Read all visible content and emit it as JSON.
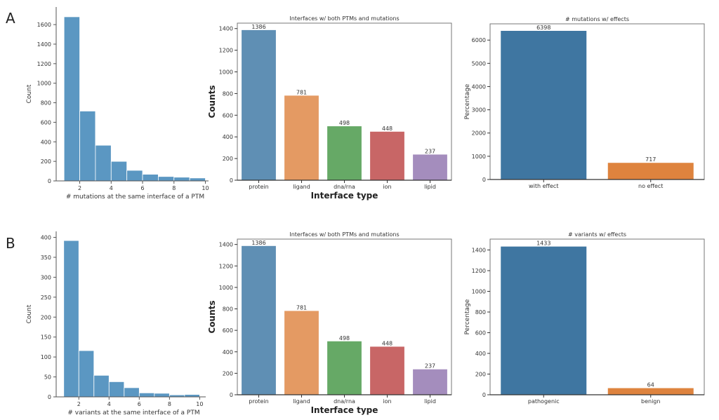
{
  "panel_labels": [
    "A",
    "B"
  ],
  "chart_data": [
    {
      "id": "A-hist",
      "type": "bar",
      "subtype": "histogram",
      "title": "",
      "xlabel": "# mutations at the same interface of a PTM",
      "ylabel": "Count",
      "bin_edges": [
        1,
        2,
        3,
        4,
        5,
        6,
        7,
        8,
        9,
        10
      ],
      "values": [
        1680,
        715,
        365,
        200,
        108,
        68,
        45,
        38,
        30
      ],
      "xlim": [
        0.5,
        10.2
      ],
      "ylim": [
        0,
        1780
      ],
      "xticks": [
        2,
        4,
        6,
        8,
        10
      ],
      "yticks": [
        0,
        200,
        400,
        600,
        800,
        1000,
        1200,
        1400,
        1600
      ],
      "color": "#5b97c2",
      "grid": false
    },
    {
      "id": "A-interfaces",
      "type": "bar",
      "title": "Interfaces w/ both PTMs and mutations",
      "xlabel": "Interface type",
      "ylabel": "Counts",
      "categories": [
        "protein",
        "ligand",
        "dna/rna",
        "ion",
        "lipid"
      ],
      "values": [
        1386,
        781,
        498,
        448,
        237
      ],
      "data_labels": [
        "1386",
        "781",
        "498",
        "448",
        "237"
      ],
      "colors": [
        "#5f8fb4",
        "#e49a63",
        "#66a966",
        "#c86666",
        "#a48dbd"
      ],
      "ylim": [
        0,
        1450
      ],
      "yticks": [
        0,
        200,
        400,
        600,
        800,
        1000,
        1200,
        1400
      ],
      "grid": false
    },
    {
      "id": "A-effects",
      "type": "bar",
      "title": "# mutations w/ effects",
      "xlabel": "",
      "ylabel": "Percentage",
      "categories": [
        "with effect",
        "no effect"
      ],
      "values": [
        6398,
        717
      ],
      "data_labels": [
        "6398",
        "717"
      ],
      "colors": [
        "#3f76a1",
        "#de833e"
      ],
      "ylim": [
        0,
        6700
      ],
      "yticks": [
        0,
        1000,
        2000,
        3000,
        4000,
        5000,
        6000
      ],
      "grid": false
    },
    {
      "id": "B-hist",
      "type": "bar",
      "subtype": "histogram",
      "title": "",
      "xlabel": "# variants at the same interface of a PTM",
      "ylabel": "Count",
      "bin_edges": [
        1,
        2,
        3,
        4,
        5,
        6,
        7,
        8,
        9,
        10
      ],
      "values": [
        392,
        116,
        54,
        38,
        23,
        10,
        9,
        5,
        6
      ],
      "xlim": [
        0.5,
        10.4
      ],
      "ylim": [
        0,
        415
      ],
      "xticks": [
        2,
        4,
        6,
        8,
        10
      ],
      "yticks": [
        0,
        50,
        100,
        150,
        200,
        250,
        300,
        350,
        400
      ],
      "color": "#5b97c2",
      "grid": false
    },
    {
      "id": "B-interfaces",
      "type": "bar",
      "title": "Interfaces w/ both PTMs and mutations",
      "xlabel": "Interface type",
      "ylabel": "Counts",
      "categories": [
        "protein",
        "ligand",
        "dna/rna",
        "ion",
        "lipid"
      ],
      "values": [
        1386,
        781,
        498,
        448,
        237
      ],
      "data_labels": [
        "1386",
        "781",
        "498",
        "448",
        "237"
      ],
      "colors": [
        "#5f8fb4",
        "#e49a63",
        "#66a966",
        "#c86666",
        "#a48dbd"
      ],
      "ylim": [
        0,
        1450
      ],
      "yticks": [
        0,
        200,
        400,
        600,
        800,
        1000,
        1200,
        1400
      ],
      "grid": false
    },
    {
      "id": "B-effects",
      "type": "bar",
      "title": "# variants w/ effects",
      "xlabel": "",
      "ylabel": "Percentage",
      "categories": [
        "pathogenic",
        "benign"
      ],
      "values": [
        1433,
        64
      ],
      "data_labels": [
        "1433",
        "64"
      ],
      "colors": [
        "#3f76a1",
        "#de833e"
      ],
      "ylim": [
        0,
        1505
      ],
      "yticks": [
        0,
        200,
        400,
        600,
        800,
        1000,
        1200,
        1400
      ],
      "grid": false
    }
  ]
}
